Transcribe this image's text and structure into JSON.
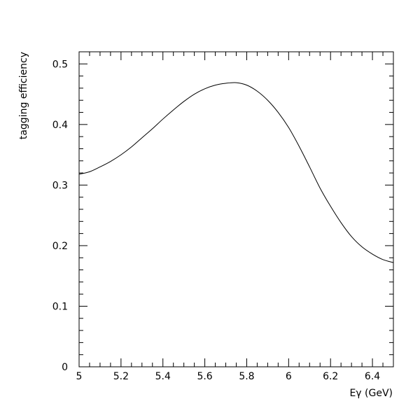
{
  "chart_data": {
    "type": "line",
    "title": "",
    "xlabel": "Eγ (GeV)",
    "ylabel": "tagging efficiency",
    "xlim": [
      5.0,
      6.5
    ],
    "ylim": [
      0,
      0.52
    ],
    "x_ticks_major": [
      5,
      5.2,
      5.4,
      5.6,
      5.8,
      6,
      6.2,
      6.4
    ],
    "x_tick_labels": [
      "5",
      "5.2",
      "5.4",
      "5.6",
      "5.8",
      "6",
      "6.2",
      "6.4"
    ],
    "y_ticks_major": [
      0,
      0.1,
      0.2,
      0.3,
      0.4,
      0.5
    ],
    "y_tick_labels": [
      "0",
      "0.1",
      "0.2",
      "0.3",
      "0.4",
      "0.5"
    ],
    "grid": false,
    "legend": "none",
    "series": [
      {
        "color": "#000000",
        "x": [
          5.0,
          5.05,
          5.1,
          5.15,
          5.2,
          5.25,
          5.3,
          5.35,
          5.4,
          5.45,
          5.5,
          5.55,
          5.6,
          5.65,
          5.7,
          5.75,
          5.8,
          5.85,
          5.9,
          5.95,
          6.0,
          6.05,
          6.1,
          6.15,
          6.2,
          6.25,
          6.3,
          6.35,
          6.4,
          6.45,
          6.5
        ],
        "y": [
          0.318,
          0.322,
          0.33,
          0.339,
          0.35,
          0.363,
          0.378,
          0.393,
          0.409,
          0.424,
          0.438,
          0.45,
          0.459,
          0.465,
          0.468,
          0.469,
          0.465,
          0.455,
          0.44,
          0.42,
          0.395,
          0.364,
          0.33,
          0.295,
          0.265,
          0.238,
          0.215,
          0.198,
          0.186,
          0.177,
          0.172
        ]
      }
    ]
  }
}
